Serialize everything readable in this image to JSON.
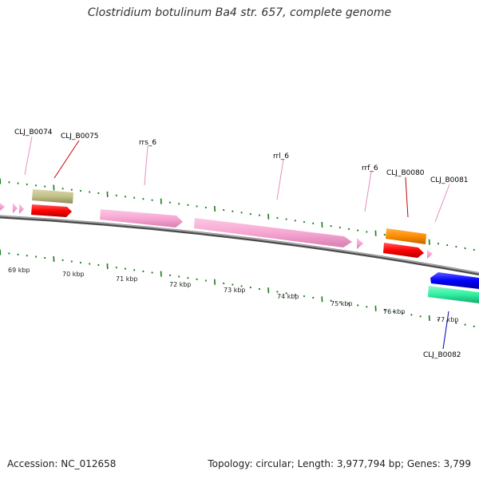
{
  "title": "Clostridium botulinum Ba4 str. 657, complete genome",
  "footer": {
    "accession": "Accession: NC_012658",
    "summary": "Topology: circular; Length: 3,977,794 bp; Genes: 3,799"
  },
  "scale_labels": [
    "69 kbp",
    "70 kbp",
    "71 kbp",
    "72 kbp",
    "73 kbp",
    "74 kbp",
    "75 kbp",
    "76 kbp",
    "77 kbp"
  ],
  "gene_labels": [
    {
      "text": "CLJ_B0074",
      "color": "#e58fbf"
    },
    {
      "text": "CLJ_B0075",
      "color": "#cc0000"
    },
    {
      "text": "rrs_6",
      "color": "#e58fbf"
    },
    {
      "text": "rrl_6",
      "color": "#e58fbf"
    },
    {
      "text": "rrf_6",
      "color": "#e58fbf"
    },
    {
      "text": "CLJ_B0080",
      "color": "#cc0000"
    },
    {
      "text": "CLJ_B0081",
      "color": "#e58fbf"
    },
    {
      "text": "CLJ_B0082",
      "color": "#0000aa"
    }
  ],
  "colors": {
    "rRNA": "#f7a6d2",
    "CDS": "#ff0000",
    "gene_olive": "#c2c088",
    "gene_orange": "#ff8c00",
    "gene_blue": "#0000ff",
    "gene_green": "#2ef0a0",
    "ticks": "#1a7a1a",
    "backbone": "#808080"
  }
}
